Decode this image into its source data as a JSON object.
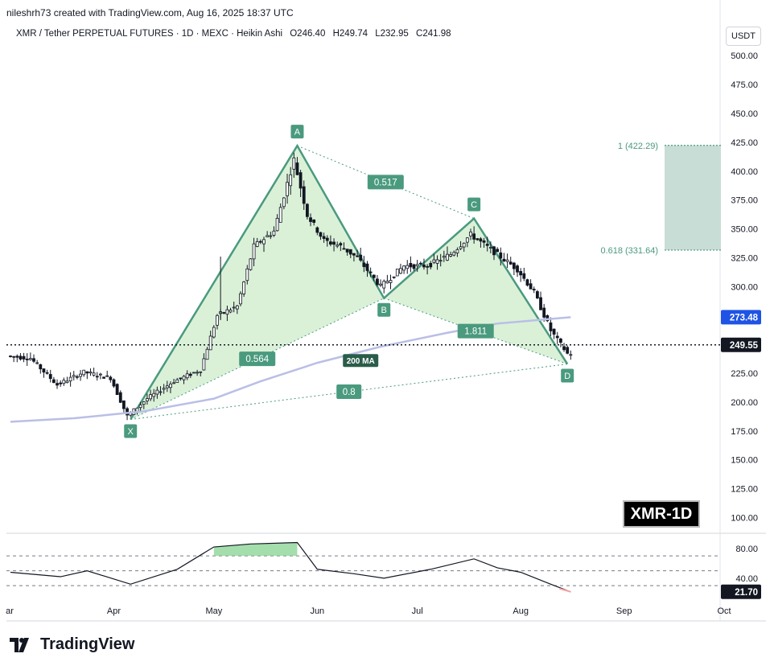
{
  "header": {
    "credit": "nileshrh73 created with TradingView.com, Aug 16, 2025 18:37 UTC"
  },
  "symbol": {
    "name": "XMR / Tether PERPETUAL FUTURES · 1D · MEXC · Heikin Ashi",
    "open": "O246.40",
    "high": "H249.74",
    "low": "L232.95",
    "close": "C241.98"
  },
  "currency_button": "USDT",
  "tag": "XMR-1D",
  "footer": {
    "brand": "TradingView",
    "logo_icon": "tradingview-logo-icon"
  },
  "colors": {
    "pattern_fill": "#cdeccb",
    "pattern_line": "#4a9a7e",
    "label_bg": "#4a9a7e",
    "ma_line": "#b9bfe6",
    "target_zone": "#c8ddd6",
    "price_tag": "#131722",
    "ma_tag": "#1e53e5",
    "rsi_line": "#131722"
  },
  "chart_data": [
    {
      "type": "line",
      "chart_style": "heikin-ashi candlestick",
      "y_axis": {
        "ticks": [
          "500.00",
          "475.00",
          "450.00",
          "425.00",
          "400.00",
          "375.00",
          "350.00",
          "325.00",
          "300.00",
          "275.00",
          "250.00",
          "225.00",
          "200.00",
          "175.00",
          "150.00",
          "125.00",
          "100.00"
        ],
        "ylim": [
          92,
          505
        ],
        "position": "right"
      },
      "x_axis": {
        "ticks": [
          "ar",
          "Apr",
          "May",
          "Jun",
          "Jul",
          "Aug",
          "Sep",
          "Oct"
        ]
      },
      "current_price": {
        "label": "249.55",
        "value": 249.55
      },
      "moving_average": {
        "name": "200 MA",
        "label": "273.48",
        "value": 273.48
      },
      "harmonic_pattern": {
        "points": [
          {
            "label": "X",
            "date": "2025-04-06",
            "price": 185
          },
          {
            "label": "A",
            "date": "2025-05-26",
            "price": 422
          },
          {
            "label": "B",
            "date": "2025-06-21",
            "price": 290
          },
          {
            "label": "C",
            "date": "2025-07-18",
            "price": 359
          },
          {
            "label": "D",
            "date": "2025-08-15",
            "price": 233
          }
        ],
        "ratios": [
          {
            "label": "0.517",
            "between": "A-C"
          },
          {
            "label": "0.564",
            "between": "X-B"
          },
          {
            "label": "1.811",
            "between": "B-D"
          },
          {
            "label": "0.8",
            "between": "X-D"
          }
        ]
      },
      "target_zone": {
        "levels": [
          {
            "label": "1 (422.29)",
            "value": 422.29
          },
          {
            "label": "0.618 (331.64)",
            "value": 331.64
          }
        ]
      },
      "series": [
        {
          "name": "200 MA",
          "points": [
            [
              "2025-03-01",
              183
            ],
            [
              "2025-03-20",
              186
            ],
            [
              "2025-04-10",
              192
            ],
            [
              "2025-05-01",
              203
            ],
            [
              "2025-05-15",
              218
            ],
            [
              "2025-06-01",
              234
            ],
            [
              "2025-06-20",
              248
            ],
            [
              "2025-07-10",
              260
            ],
            [
              "2025-07-25",
              268
            ],
            [
              "2025-08-10",
              272
            ],
            [
              "2025-08-16",
              273.48
            ]
          ]
        },
        {
          "name": "XMR",
          "points": [
            [
              "2025-03-01",
              240
            ],
            [
              "2025-03-08",
              238
            ],
            [
              "2025-03-16",
              215
            ],
            [
              "2025-03-24",
              226
            ],
            [
              "2025-04-01",
              221
            ],
            [
              "2025-04-06",
              188
            ],
            [
              "2025-04-12",
              203
            ],
            [
              "2025-04-20",
              218
            ],
            [
              "2025-04-28",
              228
            ],
            [
              "2025-05-03",
              275
            ],
            [
              "2025-05-09",
              283
            ],
            [
              "2025-05-14",
              335
            ],
            [
              "2025-05-20",
              348
            ],
            [
              "2025-05-26",
              410
            ],
            [
              "2025-05-30",
              362
            ],
            [
              "2025-06-04",
              340
            ],
            [
              "2025-06-09",
              335
            ],
            [
              "2025-06-14",
              325
            ],
            [
              "2025-06-21",
              300
            ],
            [
              "2025-06-28",
              318
            ],
            [
              "2025-07-05",
              318
            ],
            [
              "2025-07-12",
              328
            ],
            [
              "2025-07-18",
              345
            ],
            [
              "2025-07-25",
              330
            ],
            [
              "2025-08-01",
              315
            ],
            [
              "2025-08-06",
              295
            ],
            [
              "2025-08-11",
              262
            ],
            [
              "2025-08-16",
              241.98
            ]
          ]
        }
      ]
    },
    {
      "type": "line",
      "name": "RSI",
      "y_axis": {
        "ticks": [
          "80.00",
          "40.00"
        ],
        "ylim": [
          15,
          95
        ]
      },
      "current": {
        "label": "21.70",
        "value": 21.7
      },
      "series": [
        {
          "name": "RSI",
          "points": [
            [
              "2025-03-01",
              48
            ],
            [
              "2025-03-16",
              42
            ],
            [
              "2025-03-24",
              50
            ],
            [
              "2025-04-06",
              32
            ],
            [
              "2025-04-20",
              52
            ],
            [
              "2025-05-01",
              82
            ],
            [
              "2025-05-12",
              86
            ],
            [
              "2025-05-26",
              88
            ],
            [
              "2025-06-01",
              52
            ],
            [
              "2025-06-12",
              46
            ],
            [
              "2025-06-21",
              40
            ],
            [
              "2025-07-05",
              52
            ],
            [
              "2025-07-18",
              66
            ],
            [
              "2025-07-25",
              54
            ],
            [
              "2025-08-01",
              48
            ],
            [
              "2025-08-10",
              32
            ],
            [
              "2025-08-16",
              21.7
            ]
          ]
        }
      ]
    }
  ]
}
